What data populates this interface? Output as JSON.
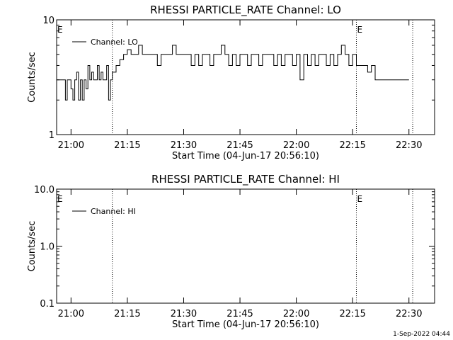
{
  "chart_data": [
    {
      "type": "line",
      "title": "RHESSI PARTICLE_RATE Channel: LO",
      "xlabel": "Start Time (04-Jun-17 20:56:10)",
      "ylabel": "Counts/sec",
      "yscale": "log",
      "ylim": [
        1,
        10
      ],
      "ytick_labels": [
        "1",
        "10"
      ],
      "xlim": [
        "20:56:10",
        "22:36:50"
      ],
      "xtick_labels": [
        "21:00",
        "21:15",
        "21:30",
        "21:45",
        "22:00",
        "22:15",
        "22:30"
      ],
      "legend": {
        "entries": [
          "Channel: LO"
        ],
        "placement": "top-left"
      },
      "grid": false,
      "vertical_markers": [
        {
          "time": "21:11:00",
          "label": ""
        },
        {
          "time": "22:16:00",
          "label": "E"
        },
        {
          "time": "22:31:00",
          "label": ""
        }
      ],
      "corner_label": "E",
      "series": [
        {
          "name": "Channel: LO",
          "x": [
            "20:56:10",
            "20:57:00",
            "20:58:00",
            "20:58:30",
            "20:59:00",
            "20:59:30",
            "21:00:00",
            "21:00:30",
            "21:01:00",
            "21:01:30",
            "21:02:00",
            "21:02:30",
            "21:03:00",
            "21:03:30",
            "21:04:00",
            "21:04:30",
            "21:05:00",
            "21:05:30",
            "21:06:00",
            "21:06:30",
            "21:07:00",
            "21:07:30",
            "21:08:00",
            "21:08:30",
            "21:09:00",
            "21:09:30",
            "21:10:00",
            "21:10:30",
            "21:11:00",
            "21:12:00",
            "21:13:00",
            "21:14:00",
            "21:15:00",
            "21:16:00",
            "21:17:00",
            "21:18:00",
            "21:19:00",
            "21:20:00",
            "21:21:00",
            "21:22:00",
            "21:23:00",
            "21:24:00",
            "21:25:00",
            "21:26:00",
            "21:27:00",
            "21:28:00",
            "21:29:00",
            "21:30:00",
            "21:31:00",
            "21:32:00",
            "21:33:00",
            "21:34:00",
            "21:35:00",
            "21:36:00",
            "21:37:00",
            "21:38:00",
            "21:39:00",
            "21:40:00",
            "21:41:00",
            "21:42:00",
            "21:43:00",
            "21:44:00",
            "21:45:00",
            "21:46:00",
            "21:47:00",
            "21:48:00",
            "21:49:00",
            "21:50:00",
            "21:51:00",
            "21:52:00",
            "21:53:00",
            "21:54:00",
            "21:55:00",
            "21:56:00",
            "21:57:00",
            "21:58:00",
            "21:59:00",
            "22:00:00",
            "22:01:00",
            "22:02:00",
            "22:03:00",
            "22:04:00",
            "22:05:00",
            "22:06:00",
            "22:07:00",
            "22:08:00",
            "22:09:00",
            "22:10:00",
            "22:11:00",
            "22:12:00",
            "22:13:00",
            "22:14:00",
            "22:15:00",
            "22:16:00",
            "22:17:00",
            "22:18:00",
            "22:19:00",
            "22:20:00",
            "22:21:00",
            "22:22:00",
            "22:23:00",
            "22:24:00",
            "22:25:00",
            "22:26:00",
            "22:27:00",
            "22:28:00",
            "22:29:00",
            "22:30:00"
          ],
          "y": [
            3.0,
            3.0,
            3.0,
            2.0,
            3.0,
            3.0,
            2.5,
            2.0,
            3.0,
            3.5,
            2.0,
            3.0,
            2.0,
            3.0,
            2.5,
            4.0,
            3.0,
            3.5,
            3.0,
            3.0,
            4.0,
            3.0,
            3.5,
            3.0,
            3.0,
            4.0,
            2.0,
            3.0,
            3.5,
            4.0,
            4.5,
            5.0,
            5.5,
            5.0,
            5.0,
            6.0,
            5.0,
            5.0,
            5.0,
            5.0,
            4.0,
            5.0,
            5.0,
            5.0,
            6.0,
            5.0,
            5.0,
            5.0,
            5.0,
            4.0,
            5.0,
            4.0,
            5.0,
            5.0,
            4.0,
            5.0,
            5.0,
            6.0,
            5.0,
            4.0,
            5.0,
            4.0,
            5.0,
            5.0,
            4.0,
            5.0,
            5.0,
            4.0,
            5.0,
            5.0,
            5.0,
            4.0,
            5.0,
            4.0,
            5.0,
            5.0,
            4.0,
            5.0,
            3.0,
            5.0,
            4.0,
            5.0,
            4.0,
            5.0,
            5.0,
            4.0,
            5.0,
            4.0,
            5.0,
            6.0,
            5.0,
            4.0,
            5.0,
            4.0,
            4.0,
            4.0,
            3.5,
            4.0,
            3.0,
            3.0,
            3.0,
            3.0,
            3.0,
            3.0,
            3.0,
            3.0,
            3.0,
            3.0
          ]
        }
      ]
    },
    {
      "type": "line",
      "title": "RHESSI PARTICLE_RATE Channel: HI",
      "xlabel": "Start Time (04-Jun-17 20:56:10)",
      "ylabel": "Counts/sec",
      "yscale": "log",
      "ylim": [
        0.1,
        10.0
      ],
      "ytick_labels": [
        "0.1",
        "1.0",
        "10.0"
      ],
      "xlim": [
        "20:56:10",
        "22:36:50"
      ],
      "xtick_labels": [
        "21:00",
        "21:15",
        "21:30",
        "21:45",
        "22:00",
        "22:15",
        "22:30"
      ],
      "legend": {
        "entries": [
          "Channel: HI"
        ],
        "placement": "top-left"
      },
      "grid": false,
      "vertical_markers": [
        {
          "time": "21:11:00",
          "label": ""
        },
        {
          "time": "22:16:00",
          "label": "E"
        },
        {
          "time": "22:31:00",
          "label": ""
        }
      ],
      "corner_label": "E",
      "series": [
        {
          "name": "Channel: HI",
          "x": [],
          "y": []
        }
      ]
    }
  ],
  "footer": {
    "timestamp": "1-Sep-2022 04:44"
  }
}
